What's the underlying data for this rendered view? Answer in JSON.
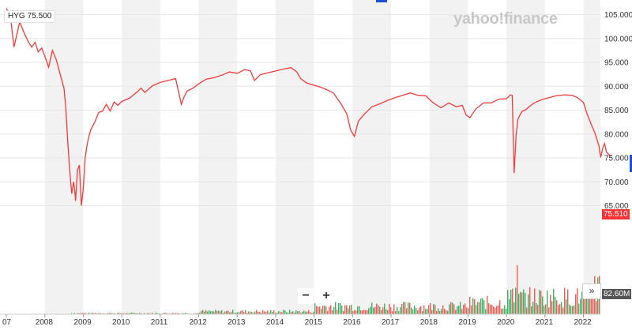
{
  "watermark": "yahoo!finance",
  "ticker": {
    "symbol": "HYG",
    "value": "75.500"
  },
  "last_price_label": "75.510",
  "volume_label": "82.60M",
  "controls": {
    "zoom_out": "−",
    "zoom_in": "+",
    "scroll_right": "»"
  },
  "colors": {
    "line": "#f03c3c",
    "band": "#f2f2f2",
    "vol_up": "#22a34a",
    "vol_down": "#e8443a"
  },
  "chart_data": {
    "type": "line",
    "title": "",
    "x_tick_labels": [
      "07",
      "2008",
      "2009",
      "2010",
      "2011",
      "2012",
      "2013",
      "2014",
      "2015",
      "2016",
      "2017",
      "2018",
      "2019",
      "2020",
      "2021",
      "2022"
    ],
    "y_tick_labels": [
      "105.000",
      "100.000",
      "95.000",
      "90.000",
      "85.000",
      "80.000",
      "75.000",
      "70.000",
      "65.000"
    ],
    "ylim": [
      62.8,
      107.5
    ],
    "xlim": [
      2007.0,
      2022.75
    ],
    "grid": "alternating year bands",
    "series": [
      {
        "values_x": [
          2007.0,
          2007.1,
          2007.2,
          2007.28,
          2007.35,
          2007.42,
          2007.5,
          2007.58,
          2007.66,
          2007.75,
          2007.83,
          2007.92,
          2008.0,
          2008.1,
          2008.2,
          2008.3,
          2008.4,
          2008.5,
          2008.55,
          2008.6,
          2008.65,
          2008.7,
          2008.75,
          2008.78,
          2008.8,
          2008.85,
          2008.9,
          2008.95,
          2009.0,
          2009.05,
          2009.1,
          2009.15,
          2009.2,
          2009.3,
          2009.4,
          2009.5,
          2009.6,
          2009.7,
          2009.8,
          2009.9,
          2010.0,
          2010.2,
          2010.4,
          2010.5,
          2010.6,
          2010.8,
          2011.0,
          2011.2,
          2011.4,
          2011.55,
          2011.62,
          2011.7,
          2011.85,
          2012.0,
          2012.2,
          2012.4,
          2012.6,
          2012.8,
          2013.0,
          2013.2,
          2013.35,
          2013.45,
          2013.6,
          2013.8,
          2014.0,
          2014.2,
          2014.4,
          2014.55,
          2014.65,
          2014.8,
          2014.95,
          2015.1,
          2015.3,
          2015.5,
          2015.7,
          2015.85,
          2015.95,
          2016.05,
          2016.15,
          2016.3,
          2016.5,
          2016.7,
          2016.9,
          2017.1,
          2017.3,
          2017.5,
          2017.7,
          2017.9,
          2018.1,
          2018.3,
          2018.5,
          2018.7,
          2018.85,
          2018.95,
          2019.05,
          2019.2,
          2019.4,
          2019.6,
          2019.8,
          2020.0,
          2020.1,
          2020.15,
          2020.2,
          2020.25,
          2020.3,
          2020.4,
          2020.5,
          2020.6,
          2020.7,
          2020.8,
          2020.95,
          2021.1,
          2021.3,
          2021.5,
          2021.7,
          2021.85,
          2022.0,
          2022.1,
          2022.2,
          2022.3,
          2022.4,
          2022.45,
          2022.5,
          2022.55,
          2022.6,
          2022.7,
          2022.75
        ],
        "values_y": [
          106.3,
          105.0,
          98.2,
          101.0,
          103.5,
          102.0,
          100.5,
          99.2,
          98.2,
          99.2,
          97.2,
          98.0,
          96.3,
          94.0,
          97.5,
          95.5,
          92.5,
          89.5,
          85.0,
          78.0,
          72.0,
          67.5,
          70.0,
          68.0,
          66.0,
          72.5,
          73.5,
          65.0,
          68.5,
          75.0,
          77.8,
          79.6,
          81.0,
          82.5,
          84.5,
          84.8,
          86.2,
          84.8,
          86.7,
          86.0,
          86.8,
          87.5,
          88.8,
          89.6,
          88.7,
          90.1,
          90.8,
          91.2,
          91.6,
          86.2,
          87.8,
          89.0,
          89.6,
          90.5,
          91.5,
          91.8,
          92.3,
          93.0,
          92.7,
          93.5,
          93.2,
          91.2,
          92.4,
          92.8,
          93.2,
          93.6,
          93.9,
          93.0,
          91.6,
          90.7,
          90.3,
          90.0,
          89.4,
          88.6,
          86.3,
          84.2,
          80.8,
          79.5,
          82.7,
          84.1,
          85.7,
          86.3,
          87.0,
          87.6,
          88.1,
          88.6,
          88.1,
          88.0,
          86.5,
          85.5,
          86.5,
          85.7,
          86.0,
          84.0,
          83.4,
          85.2,
          86.5,
          86.5,
          87.3,
          87.4,
          88.2,
          88.1,
          71.8,
          79.8,
          83.2,
          84.7,
          85.1,
          85.8,
          86.4,
          86.8,
          87.3,
          87.6,
          88.0,
          88.2,
          88.1,
          87.6,
          86.6,
          84.1,
          82.1,
          80.2,
          77.6,
          75.1,
          77.0,
          78.0,
          76.2,
          75.4,
          75.5
        ]
      }
    ]
  }
}
